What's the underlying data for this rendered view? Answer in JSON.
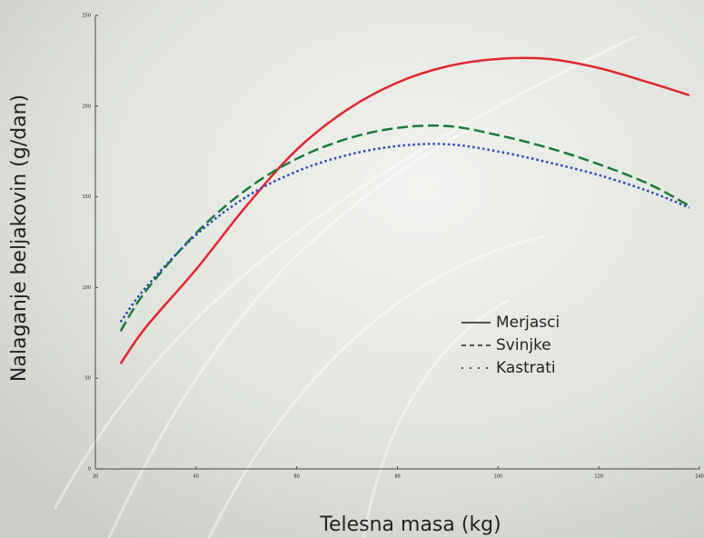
{
  "chart_data": {
    "type": "line",
    "x_label": "Telesna masa (kg)",
    "y_label": "Nalaganje beljakovin (g/dan)",
    "x": [
      25,
      30,
      40,
      50,
      60,
      70,
      80,
      90,
      100,
      110,
      120,
      130,
      138
    ],
    "series": [
      {
        "name": "Merjasci",
        "color": "#e0262e",
        "style": "solid",
        "values": [
          58,
          78,
          110,
          145,
          176,
          198,
          213,
          222,
          226,
          226,
          221,
          213,
          206
        ]
      },
      {
        "name": "Svinjke",
        "color": "#1a7a3a",
        "style": "dashed",
        "values": [
          76,
          98,
          130,
          154,
          171,
          182,
          188,
          189,
          184,
          177,
          168,
          157,
          145
        ]
      },
      {
        "name": "Kastrati",
        "color": "#2a48b8",
        "style": "dotted",
        "values": [
          81,
          100,
          129,
          150,
          164,
          173,
          178,
          179,
          175,
          169,
          162,
          153,
          144
        ]
      }
    ],
    "xlim": [
      20,
      140
    ],
    "xticks": [
      20,
      40,
      60,
      80,
      100,
      120,
      140
    ],
    "ylim": [
      0,
      250
    ],
    "yticks": [
      0,
      50,
      100,
      150,
      200,
      250
    ]
  }
}
